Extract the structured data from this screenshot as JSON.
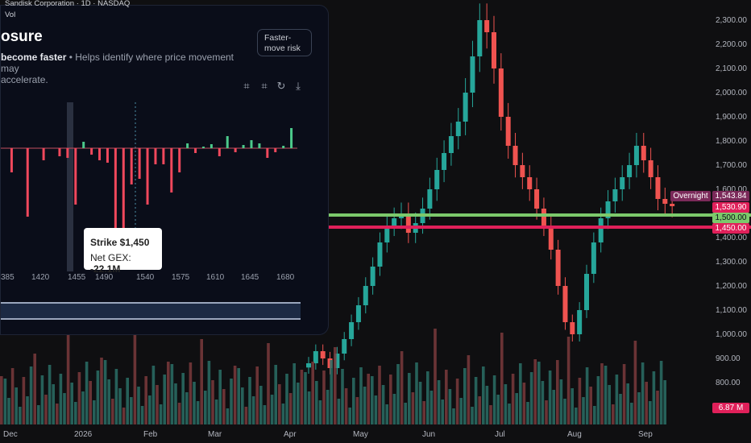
{
  "symbol_line": "Sandisk Corporation · 1D · NASDAQ",
  "vol_label": "Vol",
  "panel": {
    "title": "osure",
    "subtitle_bold": "become faster",
    "subtitle_rest": " • Helps identify where price movement may",
    "subtitle_line2": "accelerate.",
    "risk_button": "Faster-move risk",
    "strike_ticks": [
      "385",
      "1420",
      "1455",
      "1490",
      "1540",
      "1575",
      "1610",
      "1645",
      "1680"
    ],
    "tooltip": {
      "strike": "Strike $1,450",
      "net_gex_label": "Net GEX: ",
      "net_gex_value": "-22.1M"
    },
    "tools": [
      "crop-icon",
      "crop-icon",
      "refresh-icon",
      "download-icon"
    ]
  },
  "price_axis": [
    "2,300.00",
    "2,200.00",
    "2,100.00",
    "2,000.00",
    "1,900.00",
    "1,800.00",
    "1,700.00",
    "1,600.00",
    "1,400.00",
    "1,300.00",
    "1,200.00",
    "1,100.00",
    "1,000.00",
    "900.00",
    "800.00"
  ],
  "price_tags": {
    "overnight_label": "Overnight",
    "overnight": "1,543.84",
    "last": "1,530.90",
    "green_line": "1,500.00",
    "red_line": "1,450.00",
    "volume": "6.87 M"
  },
  "time_axis": [
    "Dec",
    "2026",
    "Feb",
    "Mar",
    "Apr",
    "May",
    "Jun",
    "Jul",
    "Aug",
    "Sep"
  ],
  "colors": {
    "up": "#26a69a",
    "down": "#ef5350",
    "green_level": "#7cc96b",
    "red_level": "#e0205a"
  },
  "chart_data": {
    "type": "candlestick",
    "approx_closes": [
      880,
      930,
      900,
      860,
      920,
      980,
      1050,
      1120,
      1200,
      1280,
      1380,
      1450,
      1480,
      1500,
      1420,
      1460,
      1520,
      1600,
      1680,
      1750,
      1820,
      1880,
      2000,
      2150,
      2300,
      2250,
      2100,
      1900,
      1780,
      1700,
      1650,
      1600,
      1520,
      1450,
      1350,
      1200,
      1050,
      1000,
      1100,
      1250,
      1380,
      1480,
      1550,
      1600,
      1650,
      1700,
      1780,
      1720,
      1650,
      1560,
      1540,
      1530
    ],
    "gex_bars": [
      0,
      -30,
      0,
      -85,
      0,
      -15,
      0,
      -10,
      -12,
      -70,
      8,
      -8,
      -15,
      -18,
      -135,
      -120,
      -45,
      -38,
      -70,
      -20,
      -20,
      -55,
      -30,
      6,
      -6,
      2,
      5,
      -10,
      15,
      -5,
      4,
      10,
      6,
      -12,
      -5,
      3,
      25
    ],
    "levels": {
      "green": 1500,
      "red": 1450,
      "last": 1530.9,
      "overnight": 1543.84
    }
  }
}
